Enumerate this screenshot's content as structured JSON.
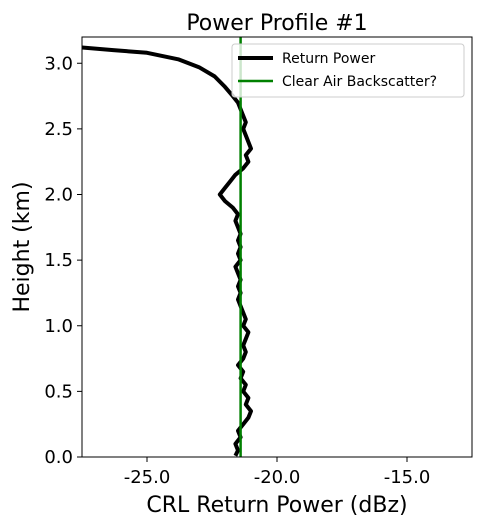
{
  "chart_data": {
    "type": "line",
    "title": "Power Profile #1",
    "xlabel": "CRL Return Power (dBz)",
    "ylabel": "Height (km)",
    "xlim": [
      -27.5,
      -12.5
    ],
    "ylim": [
      0.0,
      3.2
    ],
    "x_ticks": [
      -25.0,
      -20.0,
      -15.0
    ],
    "x_tick_labels": [
      "-25.0",
      "-20.0",
      "-15.0"
    ],
    "y_ticks": [
      0.0,
      0.5,
      1.0,
      1.5,
      2.0,
      2.5,
      3.0
    ],
    "y_tick_labels": [
      "0.0",
      "0.5",
      "1.0",
      "1.5",
      "2.0",
      "2.5",
      "3.0"
    ],
    "grid": false,
    "legend_position": "top-right",
    "series": [
      {
        "name": "Return Power",
        "color": "#000000",
        "points": [
          [
            -21.6,
            0.01
          ],
          [
            -21.5,
            0.05
          ],
          [
            -21.6,
            0.1
          ],
          [
            -21.4,
            0.15
          ],
          [
            -21.5,
            0.2
          ],
          [
            -21.3,
            0.25
          ],
          [
            -21.1,
            0.3
          ],
          [
            -21.0,
            0.35
          ],
          [
            -21.2,
            0.4
          ],
          [
            -21.1,
            0.45
          ],
          [
            -21.3,
            0.5
          ],
          [
            -21.2,
            0.55
          ],
          [
            -21.4,
            0.6
          ],
          [
            -21.3,
            0.65
          ],
          [
            -21.5,
            0.7
          ],
          [
            -21.3,
            0.75
          ],
          [
            -21.2,
            0.8
          ],
          [
            -21.3,
            0.85
          ],
          [
            -21.2,
            0.9
          ],
          [
            -21.1,
            0.95
          ],
          [
            -21.3,
            1.0
          ],
          [
            -21.2,
            1.05
          ],
          [
            -21.3,
            1.1
          ],
          [
            -21.4,
            1.15
          ],
          [
            -21.5,
            1.2
          ],
          [
            -21.4,
            1.25
          ],
          [
            -21.5,
            1.3
          ],
          [
            -21.4,
            1.35
          ],
          [
            -21.5,
            1.4
          ],
          [
            -21.6,
            1.45
          ],
          [
            -21.4,
            1.5
          ],
          [
            -21.5,
            1.55
          ],
          [
            -21.4,
            1.6
          ],
          [
            -21.5,
            1.65
          ],
          [
            -21.4,
            1.7
          ],
          [
            -21.5,
            1.75
          ],
          [
            -21.6,
            1.8
          ],
          [
            -21.5,
            1.85
          ],
          [
            -21.7,
            1.9
          ],
          [
            -22.0,
            1.95
          ],
          [
            -22.2,
            2.0
          ],
          [
            -22.0,
            2.05
          ],
          [
            -21.8,
            2.1
          ],
          [
            -21.6,
            2.15
          ],
          [
            -21.3,
            2.2
          ],
          [
            -21.1,
            2.25
          ],
          [
            -21.2,
            2.3
          ],
          [
            -21.0,
            2.35
          ],
          [
            -21.1,
            2.4
          ],
          [
            -21.2,
            2.45
          ],
          [
            -21.3,
            2.5
          ],
          [
            -21.2,
            2.55
          ],
          [
            -21.3,
            2.6
          ],
          [
            -21.4,
            2.65
          ],
          [
            -21.5,
            2.7
          ],
          [
            -21.7,
            2.75
          ],
          [
            -22.0,
            2.82
          ],
          [
            -22.4,
            2.9
          ],
          [
            -23.0,
            2.97
          ],
          [
            -23.8,
            3.03
          ],
          [
            -25.0,
            3.08
          ],
          [
            -26.3,
            3.1
          ],
          [
            -27.5,
            3.12
          ]
        ]
      },
      {
        "name": "Clear Air Backscatter?",
        "color": "#008000",
        "points": [
          [
            -21.4,
            0.0
          ],
          [
            -21.4,
            3.2
          ]
        ]
      }
    ]
  }
}
